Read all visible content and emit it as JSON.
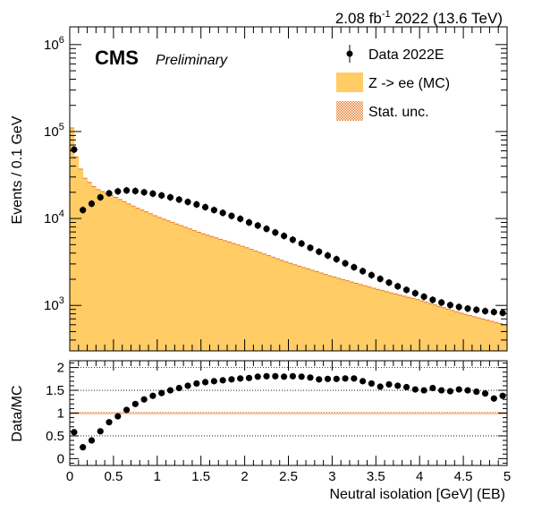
{
  "header": {
    "lumi_value": "2.08 fb",
    "lumi_exponent": "-1",
    "lumi_rest": " 2022 (13.6 TeV)",
    "cms_label": "CMS",
    "cms_sub": "Preliminary"
  },
  "legend": {
    "data_label": "Data 2022E",
    "mc_label": "Z -> ee (MC)",
    "unc_label": "Stat. unc."
  },
  "colors": {
    "mc_fill": "#ffcc66",
    "unc": "#e8792b",
    "data": "#000000"
  },
  "chart_data": [
    {
      "type": "area",
      "title": "",
      "xlabel": "Neutral isolation [GeV] (EB)",
      "ylabel": "Events / 0.1 GeV",
      "xlim": [
        0,
        5
      ],
      "ylim": [
        300,
        1600000
      ],
      "log_y": true,
      "y_tick_labels": [
        {
          "base": "10",
          "exp": "3",
          "value": 1000
        },
        {
          "base": "10",
          "exp": "4",
          "value": 10000
        },
        {
          "base": "10",
          "exp": "5",
          "value": 100000
        },
        {
          "base": "10",
          "exp": "6",
          "value": 1000000
        }
      ],
      "x_tick_labels": [
        "0",
        "0.5",
        "1",
        "1.5",
        "2",
        "2.5",
        "3",
        "3.5",
        "4",
        "4.5",
        "5"
      ],
      "series": [
        {
          "name": "Z -> ee (MC)",
          "kind": "histogram",
          "bin_width": 0.05,
          "mc_nodes": [
            [
              0.025,
              110000
            ],
            [
              0.075,
              51000
            ],
            [
              0.125,
              37000
            ],
            [
              0.175,
              29000
            ],
            [
              0.225,
              26000
            ],
            [
              0.3,
              22000
            ],
            [
              0.5,
              18000
            ],
            [
              0.75,
              13500
            ],
            [
              1.0,
              10500
            ],
            [
              1.5,
              6800
            ],
            [
              2.0,
              4700
            ],
            [
              2.5,
              3100
            ],
            [
              3.0,
              2150
            ],
            [
              3.5,
              1550
            ],
            [
              4.0,
              1150
            ],
            [
              4.5,
              800
            ],
            [
              4.975,
              600
            ]
          ]
        },
        {
          "name": "Data 2022E",
          "kind": "points",
          "x": [
            0.05,
            0.15,
            0.25,
            0.35,
            0.45,
            0.55,
            0.65,
            0.75,
            0.85,
            0.95,
            1.05,
            1.15,
            1.25,
            1.35,
            1.45,
            1.55,
            1.65,
            1.75,
            1.85,
            1.95,
            2.05,
            2.15,
            2.25,
            2.35,
            2.45,
            2.55,
            2.65,
            2.75,
            2.85,
            2.95,
            3.05,
            3.15,
            3.25,
            3.35,
            3.45,
            3.55,
            3.65,
            3.75,
            3.85,
            3.95,
            4.05,
            4.15,
            4.25,
            4.35,
            4.45,
            4.55,
            4.65,
            4.75,
            4.85,
            4.95
          ],
          "y": [
            62000,
            12500,
            14800,
            17500,
            19500,
            20500,
            21000,
            20700,
            20000,
            19300,
            18400,
            17500,
            16500,
            15500,
            14500,
            13500,
            12500,
            11600,
            10700,
            9900,
            9000,
            8300,
            7600,
            6900,
            6300,
            5700,
            5150,
            4600,
            4150,
            3750,
            3400,
            3050,
            2750,
            2480,
            2230,
            2020,
            1830,
            1660,
            1510,
            1380,
            1260,
            1160,
            1080,
            1010,
            960,
            920,
            890,
            860,
            840,
            820
          ]
        }
      ],
      "legend_position": "top-right"
    },
    {
      "type": "scatter",
      "title": "",
      "xlabel": "Neutral isolation [GeV] (EB)",
      "ylabel": "Data/MC",
      "xlim": [
        0,
        5
      ],
      "ylim": [
        -0.15,
        2.15
      ],
      "y_ticks": [
        0,
        0.5,
        1,
        1.5,
        2
      ],
      "y_tick_labels": [
        "0",
        "0.5",
        "1",
        "1.5",
        "2"
      ],
      "x_tick_labels": [
        "0",
        "0.5",
        "1",
        "1.5",
        "2",
        "2.5",
        "3",
        "3.5",
        "4",
        "4.5",
        "5"
      ],
      "grid_y": [
        0.5,
        1,
        1.5,
        2
      ],
      "series": [
        {
          "name": "Data/MC",
          "x": [
            0.05,
            0.15,
            0.25,
            0.35,
            0.45,
            0.55,
            0.65,
            0.75,
            0.85,
            0.95,
            1.05,
            1.15,
            1.25,
            1.35,
            1.45,
            1.55,
            1.65,
            1.75,
            1.85,
            1.95,
            2.05,
            2.15,
            2.25,
            2.35,
            2.45,
            2.55,
            2.65,
            2.75,
            2.85,
            2.95,
            3.05,
            3.15,
            3.25,
            3.35,
            3.45,
            3.55,
            3.65,
            3.75,
            3.85,
            3.95,
            4.05,
            4.15,
            4.25,
            4.35,
            4.45,
            4.55,
            4.65,
            4.75,
            4.85,
            4.95
          ],
          "y": [
            0.58,
            0.25,
            0.4,
            0.6,
            0.8,
            0.93,
            1.07,
            1.2,
            1.3,
            1.38,
            1.44,
            1.5,
            1.55,
            1.6,
            1.65,
            1.68,
            1.7,
            1.72,
            1.74,
            1.76,
            1.77,
            1.8,
            1.81,
            1.81,
            1.8,
            1.81,
            1.8,
            1.78,
            1.74,
            1.75,
            1.75,
            1.76,
            1.76,
            1.7,
            1.65,
            1.58,
            1.63,
            1.6,
            1.57,
            1.52,
            1.5,
            1.55,
            1.5,
            1.48,
            1.52,
            1.5,
            1.47,
            1.43,
            1.32,
            1.38
          ]
        }
      ]
    }
  ]
}
